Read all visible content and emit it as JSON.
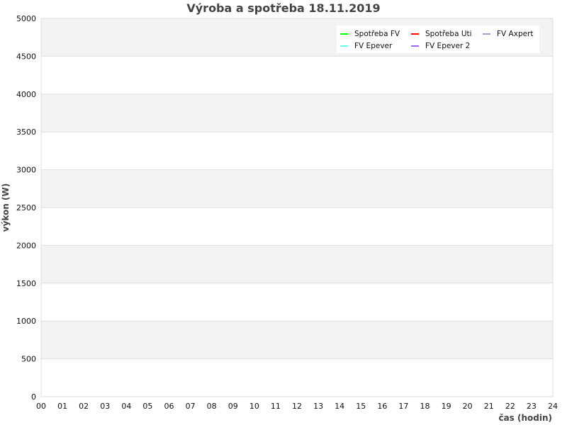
{
  "chart_data": {
    "type": "line",
    "title": "Výroba a spotřeba 18.11.2019",
    "xlabel": "čas (hodin)",
    "ylabel": "výkon (W)",
    "xlim": [
      0,
      24
    ],
    "ylim": [
      0,
      5000
    ],
    "x_ticks": [
      "00",
      "01",
      "02",
      "03",
      "04",
      "05",
      "06",
      "07",
      "08",
      "09",
      "10",
      "11",
      "12",
      "13",
      "14",
      "15",
      "16",
      "17",
      "18",
      "19",
      "20",
      "21",
      "22",
      "23",
      "24"
    ],
    "y_ticks": [
      0,
      500,
      1000,
      1500,
      2000,
      2500,
      3000,
      3500,
      4000,
      4500,
      5000
    ],
    "grid": true,
    "legend_position": "top-right",
    "series": [
      {
        "name": "Spotřeba FV",
        "color": "#00ff00",
        "values": []
      },
      {
        "name": "Spotřeba Uti",
        "color": "#ff0000",
        "values": []
      },
      {
        "name": "FV Axpert",
        "color": "#8fa8e0",
        "values": []
      },
      {
        "name": "FV Epever",
        "color": "#66ffee",
        "values": []
      },
      {
        "name": "FV Epever 2",
        "color": "#9966ee",
        "values": []
      }
    ]
  }
}
